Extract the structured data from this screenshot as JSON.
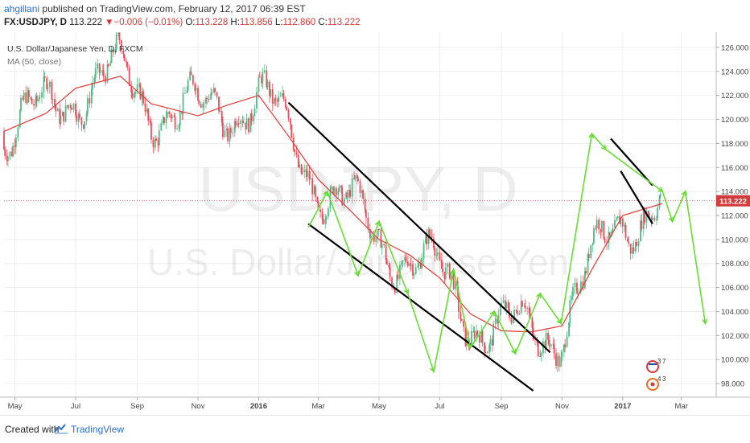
{
  "header": {
    "user": "ahgillani",
    "published_text": "published on TradingView.com, February 12, 2017 06:39 EST",
    "symbol": "FX:USDJPY, D",
    "last": "113.222",
    "change": "▼−0.006 (−0.01%)",
    "o_label": "O:",
    "o_value": "113.228",
    "h_label": "H:",
    "h_value": "113.856",
    "l_label": "L:",
    "l_value": "112.860",
    "c_label": "C:",
    "c_value": "113.222"
  },
  "legend": {
    "pair_name": "U.S. Dollar/Japanese Yen, D, FXCM",
    "ma_label": "MA (50, close)"
  },
  "watermark": {
    "symbol": "USDJPY, D",
    "name": "U.S. Dollar/Japanese Yen"
  },
  "price_tag": "113.222",
  "badges": {
    "us_count": "3",
    "us_count2": "7",
    "jp_count": "4",
    "jp_count2": "3"
  },
  "footer": {
    "created_with": "Created with",
    "brand": "TradingView"
  },
  "colors": {
    "candle_up": "#53b987",
    "candle_down": "#eb4d5c",
    "ma_line": "#e53935",
    "projection": "#66dd33",
    "trendline": "#000000",
    "price_line": "#d43b3b",
    "brand": "#2a6fc9"
  },
  "chart_data": {
    "type": "line",
    "title": "U.S. Dollar/Japanese Yen, D, FXCM",
    "x_tick_labels": [
      "May",
      "Jul",
      "Sep",
      "Nov",
      "2016",
      "Mar",
      "May",
      "Jul",
      "Sep",
      "Nov",
      "2017",
      "Mar"
    ],
    "y_tick_labels": [
      "98.000",
      "100.000",
      "102.000",
      "104.000",
      "106.000",
      "108.000",
      "110.000",
      "112.000",
      "114.000",
      "116.000",
      "118.000",
      "120.000",
      "122.000",
      "124.000",
      "126.000"
    ],
    "ylim": [
      97,
      127
    ],
    "last_price": 113.222,
    "grid": true,
    "series": [
      {
        "name": "MA (50, close)",
        "x": [
          "2015-04-20",
          "2015-06-01",
          "2015-07-01",
          "2015-08-15",
          "2015-09-15",
          "2015-11-01",
          "2015-12-01",
          "2016-01-01",
          "2016-02-01",
          "2016-03-01",
          "2016-04-01",
          "2016-05-01",
          "2016-06-01",
          "2016-07-01",
          "2016-08-01",
          "2016-09-01",
          "2016-10-01",
          "2016-11-01",
          "2016-12-01",
          "2017-01-01",
          "2017-02-10"
        ],
        "values": [
          119.0,
          120.5,
          122.6,
          123.6,
          121.3,
          120.3,
          121.2,
          122.0,
          118.5,
          115.0,
          112.5,
          110.0,
          108.7,
          106.8,
          103.8,
          102.4,
          102.3,
          102.8,
          107.5,
          112.0,
          113.0
        ]
      }
    ],
    "channel_lines": [
      {
        "x": [
          "2016-01-31",
          "2016-10-20"
        ],
        "y": [
          121.4,
          100.6
        ]
      },
      {
        "x": [
          "2016-02-20",
          "2016-10-03"
        ],
        "y": [
          111.3,
          97.4
        ]
      },
      {
        "x": [
          "2016-12-20",
          "2017-01-31"
        ],
        "y": [
          118.4,
          114.5
        ]
      },
      {
        "x": [
          "2016-12-30",
          "2017-01-31"
        ],
        "y": [
          115.7,
          111.3
        ]
      }
    ],
    "projection_path": {
      "x": [
        "2016-02-20",
        "2016-03-10",
        "2016-04-10",
        "2016-05-01",
        "2016-05-30",
        "2016-06-25",
        "2016-07-15",
        "2016-08-01",
        "2016-08-25",
        "2016-09-15",
        "2016-10-10",
        "2016-10-31",
        "2016-12-01",
        "2016-12-15",
        "2017-02-10",
        "2017-02-20",
        "2017-03-05",
        "2017-03-25"
      ],
      "y": [
        111.0,
        114.0,
        107.0,
        111.5,
        105.5,
        99.0,
        107.5,
        101.0,
        104.0,
        100.5,
        105.5,
        103.0,
        118.8,
        117.5,
        114.0,
        111.5,
        114.0,
        103.0
      ]
    }
  }
}
